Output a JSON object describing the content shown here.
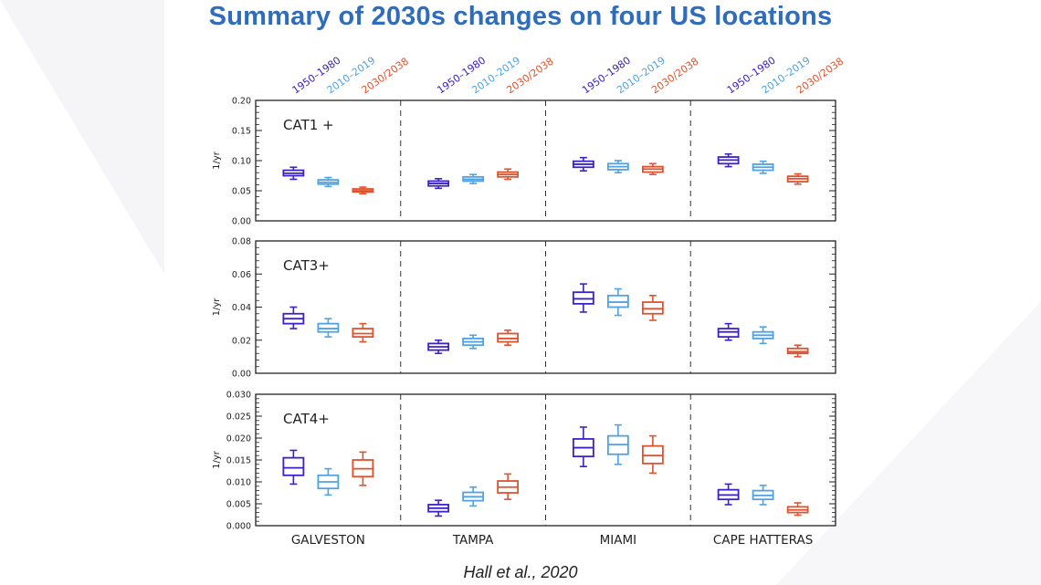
{
  "title": "Summary of 2030s changes on four US locations",
  "citation": "Hall et al., 2020",
  "colors": {
    "title": "#2F6DBA",
    "series": [
      "#3A22C8",
      "#4FA2E3",
      "#E0522E"
    ]
  },
  "chart_data": {
    "type": "boxplot",
    "series": [
      {
        "name": "1950–1980"
      },
      {
        "name": "2010–2019"
      },
      {
        "name": "2030/2038"
      }
    ],
    "locations": [
      "GALVESTON",
      "TAMPA",
      "MIAMI",
      "CAPE  HATTERAS"
    ],
    "panels": [
      {
        "label": "CAT1 +",
        "ylabel": "1/yr",
        "ylim": [
          0,
          0.2
        ],
        "yticks": [
          "0.00",
          "0.05",
          "0.10",
          "0.15",
          "0.20"
        ],
        "boxes": [
          [
            [
              0.069,
              0.075,
              0.079,
              0.084,
              0.089
            ],
            [
              0.057,
              0.061,
              0.064,
              0.068,
              0.072
            ],
            [
              0.045,
              0.048,
              0.05,
              0.053,
              0.056
            ]
          ],
          [
            [
              0.054,
              0.058,
              0.062,
              0.066,
              0.07
            ],
            [
              0.062,
              0.066,
              0.069,
              0.073,
              0.077
            ],
            [
              0.069,
              0.073,
              0.077,
              0.081,
              0.086
            ]
          ],
          [
            [
              0.083,
              0.089,
              0.094,
              0.099,
              0.105
            ],
            [
              0.08,
              0.085,
              0.09,
              0.095,
              0.1
            ],
            [
              0.077,
              0.081,
              0.086,
              0.09,
              0.095
            ]
          ],
          [
            [
              0.09,
              0.095,
              0.101,
              0.106,
              0.111
            ],
            [
              0.079,
              0.084,
              0.089,
              0.094,
              0.099
            ],
            [
              0.061,
              0.065,
              0.07,
              0.074,
              0.078
            ]
          ]
        ]
      },
      {
        "label": "CAT3+",
        "ylabel": "1/yr",
        "ylim": [
          0,
          0.08
        ],
        "yticks": [
          "0.00",
          "0.02",
          "0.04",
          "0.06",
          "0.08"
        ],
        "boxes": [
          [
            [
              0.027,
              0.03,
              0.033,
              0.036,
              0.04
            ],
            [
              0.022,
              0.025,
              0.027,
              0.03,
              0.033
            ],
            [
              0.019,
              0.022,
              0.024,
              0.027,
              0.03
            ]
          ],
          [
            [
              0.012,
              0.014,
              0.016,
              0.018,
              0.02
            ],
            [
              0.015,
              0.017,
              0.019,
              0.021,
              0.023
            ],
            [
              0.017,
              0.019,
              0.021,
              0.024,
              0.026
            ]
          ],
          [
            [
              0.037,
              0.042,
              0.045,
              0.049,
              0.054
            ],
            [
              0.035,
              0.04,
              0.043,
              0.047,
              0.051
            ],
            [
              0.032,
              0.036,
              0.039,
              0.043,
              0.047
            ]
          ],
          [
            [
              0.02,
              0.022,
              0.025,
              0.027,
              0.03
            ],
            [
              0.018,
              0.021,
              0.023,
              0.025,
              0.028
            ],
            [
              0.01,
              0.012,
              0.013,
              0.015,
              0.017
            ]
          ]
        ]
      },
      {
        "label": "CAT4+",
        "ylabel": "1/yr",
        "ylim": [
          0,
          0.03
        ],
        "yticks": [
          "0.000",
          "0.005",
          "0.010",
          "0.015",
          "0.020",
          "0.025",
          "0.030"
        ],
        "boxes": [
          [
            [
              0.0095,
              0.0115,
              0.0132,
              0.0155,
              0.0172
            ],
            [
              0.007,
              0.0085,
              0.01,
              0.0115,
              0.013
            ],
            [
              0.0092,
              0.0112,
              0.013,
              0.015,
              0.0168
            ]
          ],
          [
            [
              0.0022,
              0.0032,
              0.004,
              0.0048,
              0.0058
            ],
            [
              0.0045,
              0.0057,
              0.0066,
              0.0076,
              0.0088
            ],
            [
              0.006,
              0.0075,
              0.0088,
              0.0102,
              0.0118
            ]
          ],
          [
            [
              0.0135,
              0.0158,
              0.0178,
              0.0198,
              0.0225
            ],
            [
              0.014,
              0.0163,
              0.0185,
              0.0205,
              0.023
            ],
            [
              0.012,
              0.0142,
              0.016,
              0.0182,
              0.0205
            ]
          ],
          [
            [
              0.0048,
              0.006,
              0.007,
              0.0082,
              0.0095
            ],
            [
              0.0048,
              0.006,
              0.0069,
              0.008,
              0.0092
            ],
            [
              0.0024,
              0.003,
              0.0036,
              0.0043,
              0.0052
            ]
          ]
        ]
      }
    ]
  }
}
